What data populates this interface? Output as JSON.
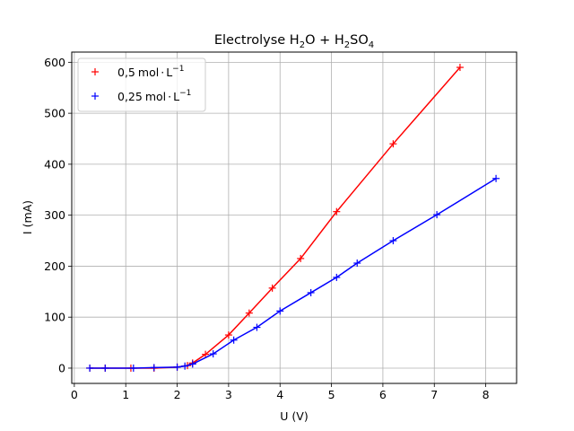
{
  "chart_data": {
    "type": "line",
    "title_main": "Electrolyse H",
    "title_sub1": "2",
    "title_mid": "O + H",
    "title_sub2": "2",
    "title_mid2": "SO",
    "title_sub3": "4",
    "xlabel": "U (V)",
    "ylabel": "I (mA)",
    "xlim": [
      -0.05,
      8.6
    ],
    "ylim": [
      -30,
      620
    ],
    "xticks": [
      0,
      1,
      2,
      3,
      4,
      5,
      6,
      7,
      8
    ],
    "yticks": [
      0,
      100,
      200,
      300,
      400,
      500,
      600
    ],
    "grid": true,
    "legend_position": "top-left",
    "series": [
      {
        "name_prefix": "0,5",
        "name_unit": "mol",
        "name_dot": "·",
        "name_L": "L",
        "name_exp": "−1",
        "color": "#ff0000",
        "x": [
          0.3,
          0.6,
          1.1,
          1.55,
          2.0,
          2.2,
          2.3,
          2.55,
          3.0,
          3.4,
          3.85,
          4.4,
          5.1,
          6.2,
          7.5
        ],
        "y": [
          0,
          0,
          0,
          0,
          2,
          5,
          10,
          27,
          65,
          108,
          157,
          215,
          307,
          440,
          590
        ]
      },
      {
        "name_prefix": "0,25",
        "name_unit": "mol",
        "name_dot": "·",
        "name_L": "L",
        "name_exp": "−1",
        "color": "#0000ff",
        "x": [
          0.3,
          0.6,
          1.15,
          1.55,
          2.0,
          2.15,
          2.3,
          2.7,
          3.1,
          3.55,
          4.0,
          4.6,
          5.1,
          5.5,
          6.2,
          7.05,
          8.2
        ],
        "y": [
          0,
          0,
          0,
          1,
          2,
          4,
          8,
          28,
          55,
          80,
          112,
          148,
          178,
          206,
          250,
          301,
          372
        ]
      }
    ]
  }
}
